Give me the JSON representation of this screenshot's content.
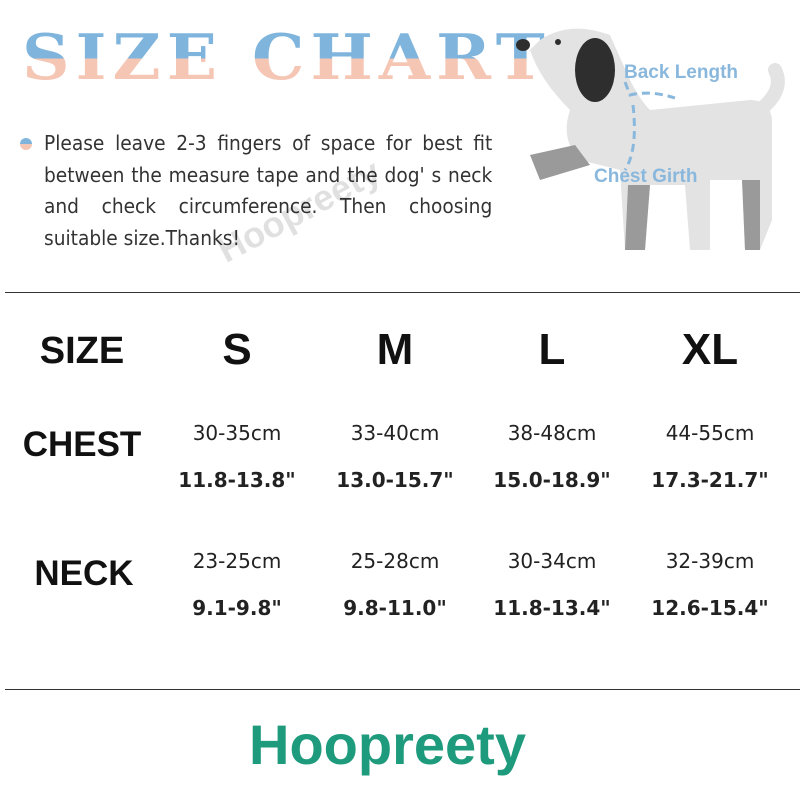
{
  "title": "SIZE CHART",
  "note": "Please leave 2-3 fingers of space for best fit between the measure tape and the dog' s neck and check circumference. Then choosing suitable size.Thanks!",
  "watermark": "Hoopreety",
  "diagram": {
    "back_length": "Back Length",
    "chest_girth": "Chest Girth"
  },
  "table": {
    "header_label": "SIZE",
    "sizes": [
      "S",
      "M",
      "L",
      "XL"
    ],
    "rows": [
      {
        "label": "CHEST",
        "cm": [
          "30-35cm",
          "33-40cm",
          "38-48cm",
          "44-55cm"
        ],
        "inch": [
          "11.8-13.8\"",
          "13.0-15.7\"",
          "15.0-18.9\"",
          "17.3-21.7\""
        ]
      },
      {
        "label": "NECK",
        "cm": [
          "23-25cm",
          "25-28cm",
          "30-34cm",
          "32-39cm"
        ],
        "inch": [
          "9.1-9.8\"",
          "9.8-11.0\"",
          "11.8-13.4\"",
          "12.6-15.4\""
        ]
      }
    ]
  },
  "brand": "Hoopreety",
  "colors": {
    "brand": "#1e9a7c",
    "title_top": "#7fb4dc",
    "title_bottom": "#f5c6b4"
  }
}
